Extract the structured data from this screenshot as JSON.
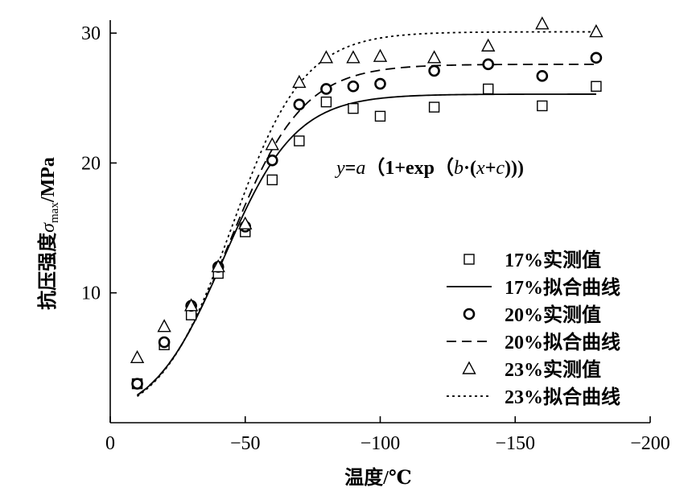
{
  "chart_data": {
    "type": "scatter",
    "xlabel": "温度/℃",
    "ylabel_main": "抗压强度",
    "ylabel_symbol": "σ",
    "ylabel_sub": "max",
    "ylabel_unit": "/MPa",
    "xlim": [
      0,
      -200
    ],
    "ylim": [
      0,
      31
    ],
    "xticks": [
      0,
      -50,
      -100,
      -150,
      -200
    ],
    "xtick_labels": [
      "0",
      "−50",
      "−100",
      "−150",
      "−200"
    ],
    "yticks": [
      10,
      20,
      30
    ],
    "ytick_labels": [
      "10",
      "20",
      "30"
    ],
    "grid": false,
    "legend_position": "lower-right",
    "annotation": {
      "parts": [
        "y",
        "=",
        "a",
        "（1+exp（",
        "b",
        "·(",
        "x",
        "+",
        "c",
        ")))"
      ]
    },
    "series": [
      {
        "name": "17%实测值",
        "kind": "points",
        "marker": "square",
        "x": [
          -10,
          -20,
          -30,
          -40,
          -50,
          -60,
          -70,
          -80,
          -90,
          -100,
          -120,
          -140,
          -160,
          -180
        ],
        "y": [
          3.0,
          6.0,
          8.3,
          11.5,
          14.7,
          18.7,
          21.7,
          24.7,
          24.2,
          23.6,
          24.3,
          25.7,
          24.4,
          25.9
        ]
      },
      {
        "name": "17%拟合曲线",
        "kind": "fit",
        "dash": "solid",
        "a": 25.3,
        "b": 0.075,
        "c": 42.0,
        "x_range": [
          -10,
          -180
        ]
      },
      {
        "name": "20%实测值",
        "kind": "points",
        "marker": "circle",
        "x": [
          -10,
          -20,
          -30,
          -40,
          -50,
          -60,
          -70,
          -80,
          -90,
          -100,
          -120,
          -140,
          -160,
          -180
        ],
        "y": [
          3.0,
          6.2,
          9.0,
          12.0,
          15.1,
          20.2,
          24.5,
          25.7,
          25.9,
          26.1,
          27.1,
          27.6,
          26.7,
          28.1
        ]
      },
      {
        "name": "20%拟合曲线",
        "kind": "fit",
        "dash": "dashed",
        "a": 27.6,
        "b": 0.073,
        "c": 44.0,
        "x_range": [
          -10,
          -180
        ]
      },
      {
        "name": "23%实测值",
        "kind": "points",
        "marker": "triangle",
        "x": [
          -10,
          -20,
          -30,
          -40,
          -50,
          -60,
          -70,
          -80,
          -90,
          -100,
          -120,
          -140,
          -160,
          -180
        ],
        "y": [
          5.0,
          7.4,
          9.0,
          12.0,
          15.3,
          21.4,
          26.2,
          28.1,
          28.1,
          28.2,
          28.1,
          29.0,
          30.7,
          30.1
        ]
      },
      {
        "name": "23%拟合曲线",
        "kind": "fit",
        "dash": "dotted",
        "a": 30.1,
        "b": 0.075,
        "c": 45.0,
        "x_range": [
          -10,
          -180
        ]
      }
    ]
  }
}
